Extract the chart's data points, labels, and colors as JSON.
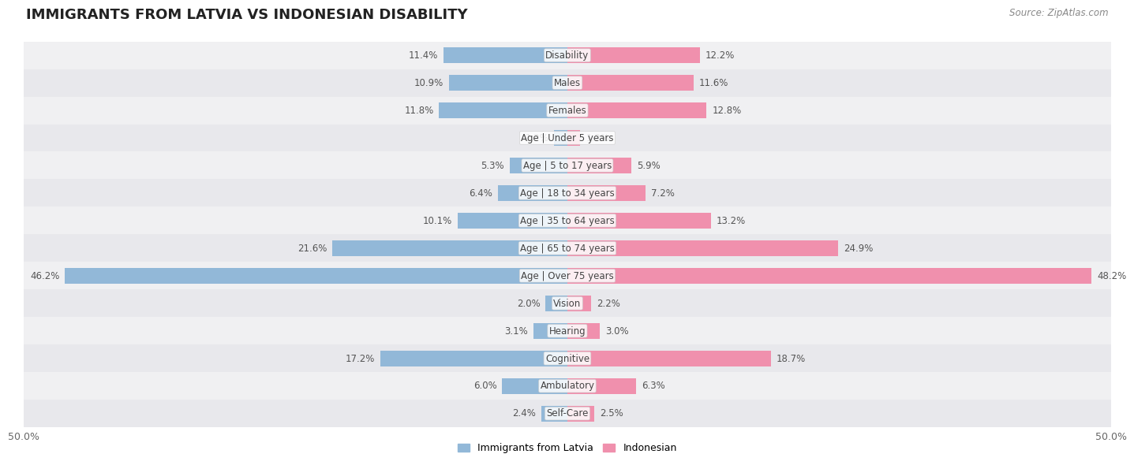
{
  "title": "IMMIGRANTS FROM LATVIA VS INDONESIAN DISABILITY",
  "source": "Source: ZipAtlas.com",
  "categories": [
    "Disability",
    "Males",
    "Females",
    "Age | Under 5 years",
    "Age | 5 to 17 years",
    "Age | 18 to 34 years",
    "Age | 35 to 64 years",
    "Age | 65 to 74 years",
    "Age | Over 75 years",
    "Vision",
    "Hearing",
    "Cognitive",
    "Ambulatory",
    "Self-Care"
  ],
  "latvia_values": [
    11.4,
    10.9,
    11.8,
    1.2,
    5.3,
    6.4,
    10.1,
    21.6,
    46.2,
    2.0,
    3.1,
    17.2,
    6.0,
    2.4
  ],
  "indonesian_values": [
    12.2,
    11.6,
    12.8,
    1.2,
    5.9,
    7.2,
    13.2,
    24.9,
    48.2,
    2.2,
    3.0,
    18.7,
    6.3,
    2.5
  ],
  "latvia_color": "#92b8d8",
  "indonesian_color": "#f090ad",
  "bar_height": 0.58,
  "max_val": 50.0,
  "x_axis_label_left": "50.0%",
  "x_axis_label_right": "50.0%",
  "legend_latvia": "Immigrants from Latvia",
  "legend_indonesian": "Indonesian",
  "row_bg_even": "#f0f0f2",
  "row_bg_odd": "#e8e8ec",
  "title_fontsize": 13,
  "cat_fontsize": 8.5,
  "value_fontsize": 8.5
}
